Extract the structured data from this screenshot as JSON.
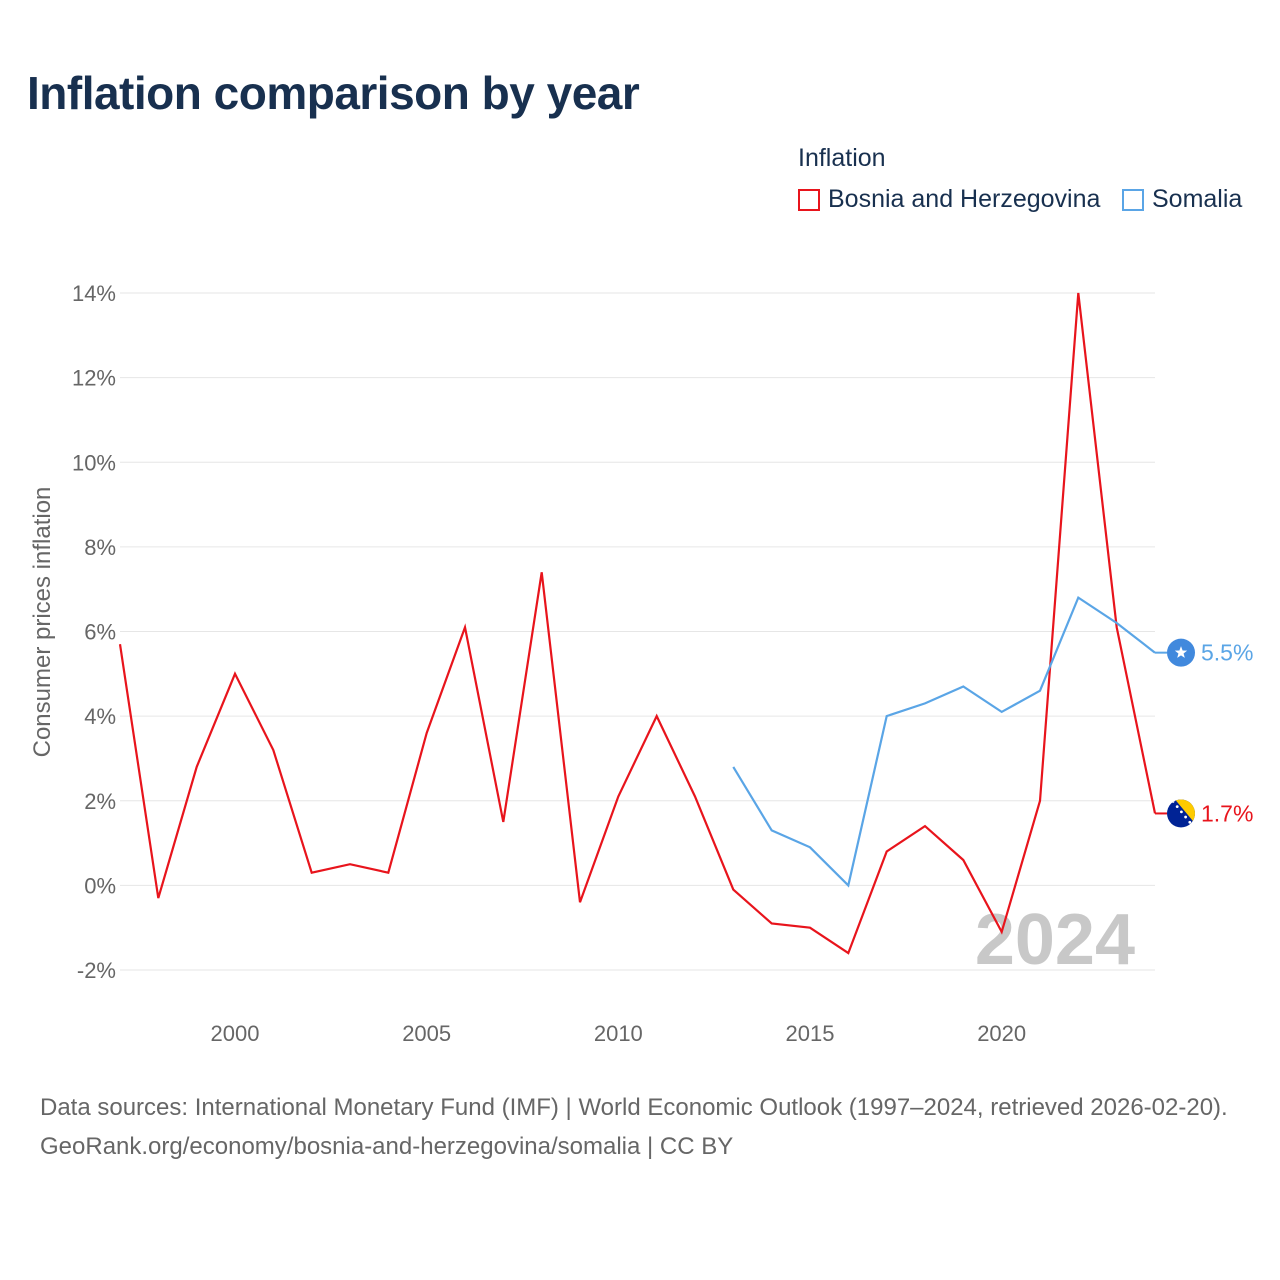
{
  "chart_data": {
    "type": "line",
    "title": "Inflation comparison by year",
    "legend_title": "Inflation",
    "ylabel": "Consumer prices inflation",
    "xlabel": "",
    "ylim": [
      -2,
      14
    ],
    "xlim": [
      1997,
      2024
    ],
    "y_ticks": [
      -2,
      0,
      2,
      4,
      6,
      8,
      10,
      12,
      14
    ],
    "y_tick_labels": [
      "-2%",
      "0%",
      "2%",
      "4%",
      "6%",
      "8%",
      "10%",
      "12%",
      "14%"
    ],
    "x_ticks": [
      2000,
      2005,
      2010,
      2015,
      2020
    ],
    "x_tick_labels": [
      "2000",
      "2005",
      "2010",
      "2015",
      "2020"
    ],
    "year_watermark": "2024",
    "series": [
      {
        "name": "Bosnia and Herzegovina",
        "color": "#e8141c",
        "end_label": "1.7%",
        "flag": "bosnia-flag-icon",
        "x": [
          1997,
          1998,
          1999,
          2000,
          2001,
          2002,
          2003,
          2004,
          2005,
          2006,
          2007,
          2008,
          2009,
          2010,
          2011,
          2012,
          2013,
          2014,
          2015,
          2016,
          2017,
          2018,
          2019,
          2020,
          2021,
          2022,
          2023,
          2024
        ],
        "values": [
          5.7,
          -0.3,
          2.8,
          5.0,
          3.2,
          0.3,
          0.5,
          0.3,
          3.6,
          6.1,
          1.5,
          7.4,
          -0.4,
          2.1,
          4.0,
          2.1,
          -0.1,
          -0.9,
          -1.0,
          -1.6,
          0.8,
          1.4,
          0.6,
          -1.1,
          2.0,
          14.0,
          6.1,
          1.7
        ]
      },
      {
        "name": "Somalia",
        "color": "#5aa5e6",
        "end_label": "5.5%",
        "flag": "somalia-flag-icon",
        "x": [
          2013,
          2014,
          2015,
          2016,
          2017,
          2018,
          2019,
          2020,
          2021,
          2022,
          2023,
          2024
        ],
        "values": [
          2.8,
          1.3,
          0.9,
          0.0,
          4.0,
          4.3,
          4.7,
          4.1,
          4.6,
          6.8,
          6.2,
          5.5
        ]
      }
    ]
  },
  "footer": {
    "sources": "Data sources: International Monetary Fund (IMF) | World Economic Outlook (1997–2024, retrieved 2026-02-20).",
    "credit": "GeoRank.org/economy/bosnia-and-herzegovina/somalia | CC BY"
  }
}
